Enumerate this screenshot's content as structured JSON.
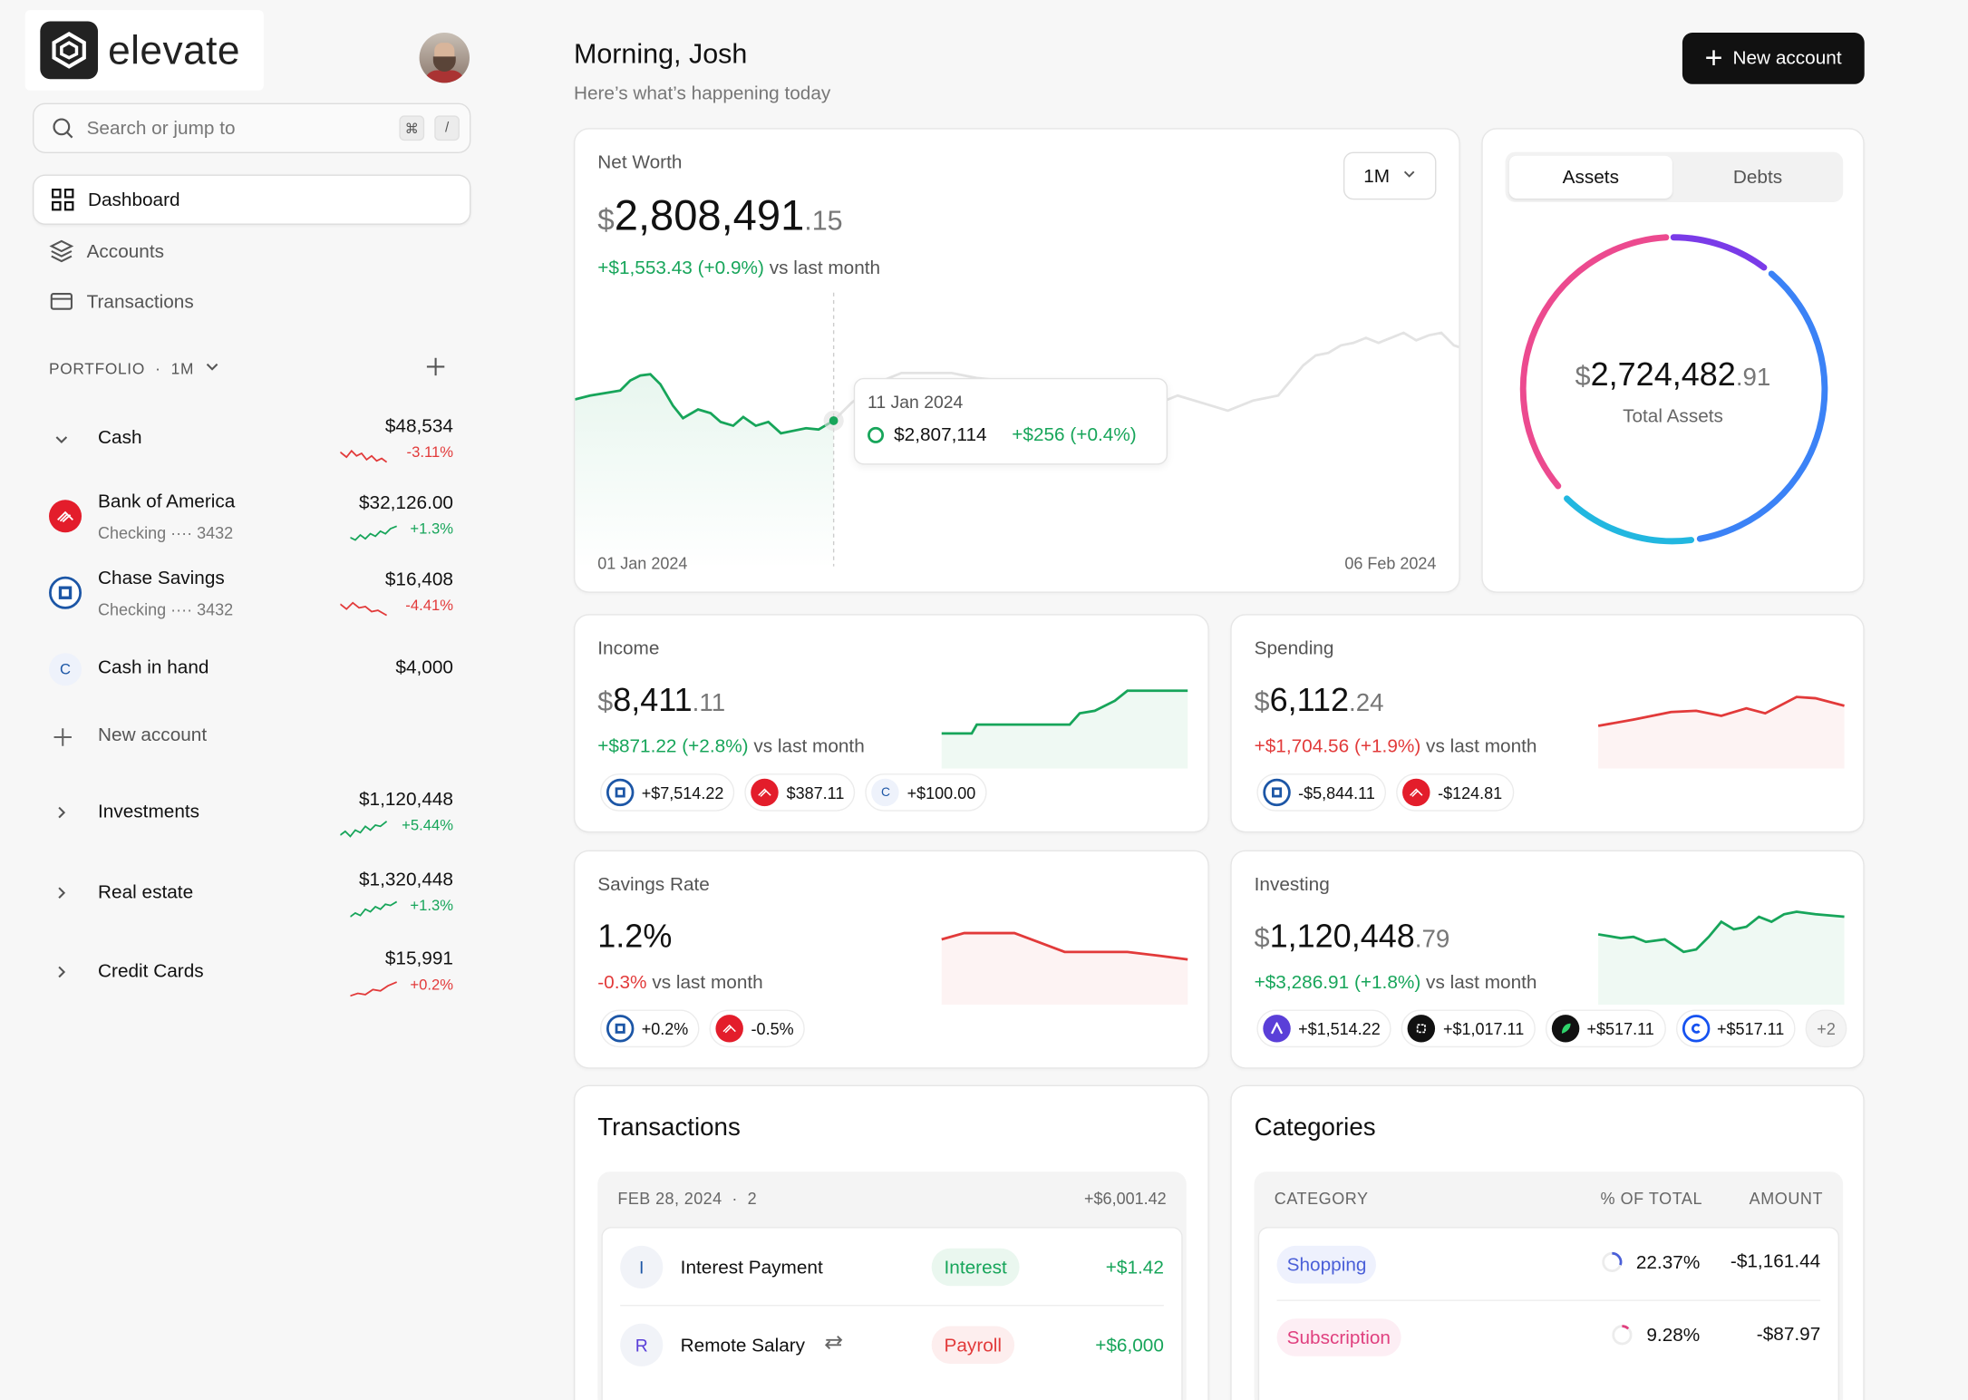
{
  "brand": {
    "name": "elevate"
  },
  "search": {
    "placeholder": "Search or jump to",
    "kbd1": "⌘",
    "kbd2": "/"
  },
  "nav": [
    {
      "label": "Dashboard",
      "icon": "grid-icon"
    },
    {
      "label": "Accounts",
      "icon": "layers-icon"
    },
    {
      "label": "Transactions",
      "icon": "card-icon"
    }
  ],
  "portfolio": {
    "label": "PORTFOLIO",
    "sep": "·",
    "range": "1M"
  },
  "accounts": {
    "cash": {
      "name": "Cash",
      "amount": "$48,534",
      "change": "-3.11%"
    },
    "boa": {
      "name": "Bank of America",
      "sub": "Checking ···· 3432",
      "amount": "$32,126.00",
      "change": "+1.3%"
    },
    "chase": {
      "name": "Chase Savings",
      "sub": "Checking ···· 3432",
      "amount": "$16,408",
      "change": "-4.41%"
    },
    "hand": {
      "name": "Cash in hand",
      "letter": "C",
      "amount": "$4,000"
    },
    "new": {
      "label": "New account"
    },
    "investments": {
      "name": "Investments",
      "amount": "$1,120,448",
      "change": "+5.44%"
    },
    "realestate": {
      "name": "Real estate",
      "amount": "$1,320,448",
      "change": "+1.3%"
    },
    "credit": {
      "name": "Credit Cards",
      "amount": "$15,991",
      "change": "+0.2%"
    }
  },
  "header": {
    "greeting": "Morning, Josh",
    "subtitle": "Here’s what’s happening today",
    "new_account": "New account"
  },
  "networth": {
    "title": "Net Worth",
    "cur": "$",
    "whole": "2,808,491",
    "dec": ".15",
    "delta": "+$1,553.43",
    "delta_pct": "(+0.9%)",
    "vs": "vs last month",
    "range": "1M",
    "tooltip": {
      "date": "11 Jan 2024",
      "value": "$2,807,114",
      "change": "+$256 (+0.4%)"
    },
    "x_start": "01 Jan 2024",
    "x_end": "06 Feb 2024"
  },
  "assets": {
    "tab_assets": "Assets",
    "tab_debts": "Debts",
    "cur": "$",
    "whole": "2,724,482",
    "dec": ".91",
    "label": "Total Assets"
  },
  "income": {
    "title": "Income",
    "cur": "$",
    "whole": "8,411",
    "dec": ".11",
    "delta": "+$871.22 (+2.8%)",
    "vs": "vs last month",
    "chips": [
      "+$7,514.22",
      "$387.11",
      "+$100.00"
    ],
    "chip_letter": "C"
  },
  "spending": {
    "title": "Spending",
    "cur": "$",
    "whole": "6,112",
    "dec": ".24",
    "delta": "+$1,704.56 (+1.9%)",
    "vs": "vs last month",
    "chips": [
      "-$5,844.11",
      "-$124.81"
    ]
  },
  "savings": {
    "title": "Savings Rate",
    "value": "1.2%",
    "delta": "-0.3%",
    "vs": "vs last month",
    "chips": [
      "+0.2%",
      "-0.5%"
    ]
  },
  "investing": {
    "title": "Investing",
    "cur": "$",
    "whole": "1,120,448",
    "dec": ".79",
    "delta": "+$3,286.91 (+1.8%)",
    "vs": "vs last month",
    "chips": [
      "+$1,514.22",
      "+$1,017.11",
      "+$517.11",
      "+$517.11"
    ],
    "more": "+2"
  },
  "transactions": {
    "title": "Transactions",
    "date": "FEB 28, 2024",
    "sep": "·",
    "count": "2",
    "total": "+$6,001.42",
    "rows": [
      {
        "letter": "I",
        "name": "Interest Payment",
        "tag": "Interest",
        "amount": "+$1.42"
      },
      {
        "letter": "R",
        "name": "Remote Salary",
        "tag": "Payroll",
        "amount": "+$6,000"
      }
    ]
  },
  "categories": {
    "title": "Categories",
    "col_category": "CATEGORY",
    "col_pct": "% OF TOTAL",
    "col_amount": "AMOUNT",
    "rows": [
      {
        "name": "Shopping",
        "pct": "22.37%",
        "amount": "-$1,161.44"
      },
      {
        "name": "Subscription",
        "pct": "9.28%",
        "amount": "-$87.97"
      }
    ]
  },
  "colors": {
    "positive": "#17a55a",
    "negative": "#e23a3a",
    "accent": "#111111"
  }
}
